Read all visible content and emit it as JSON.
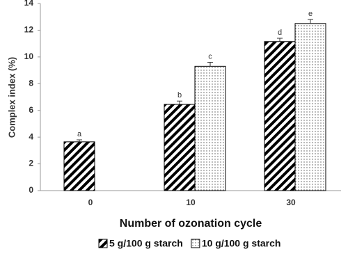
{
  "chart_data": {
    "type": "bar",
    "x_label": "Number of ozonation cycle",
    "y_label": "Complex index (%)",
    "categories": [
      "0",
      "10",
      "30"
    ],
    "series": [
      {
        "name": "5 g/100 g starch",
        "color": "#000000",
        "pattern": "hatch",
        "values": [
          3.65,
          6.45,
          11.15
        ],
        "errors": [
          0.15,
          0.25,
          0.25
        ],
        "letters": [
          "a",
          "b",
          "d"
        ]
      },
      {
        "name": "10 g/100 g starch",
        "color": "#000000",
        "pattern": "dots",
        "values": [
          null,
          9.3,
          12.5
        ],
        "errors": [
          null,
          0.3,
          0.3
        ],
        "letters": [
          null,
          "c",
          "e"
        ]
      }
    ],
    "ylim": [
      0,
      14
    ],
    "yticks": [
      0,
      2,
      4,
      6,
      8,
      10,
      12,
      14
    ],
    "grid": false,
    "legend": "bottom"
  }
}
